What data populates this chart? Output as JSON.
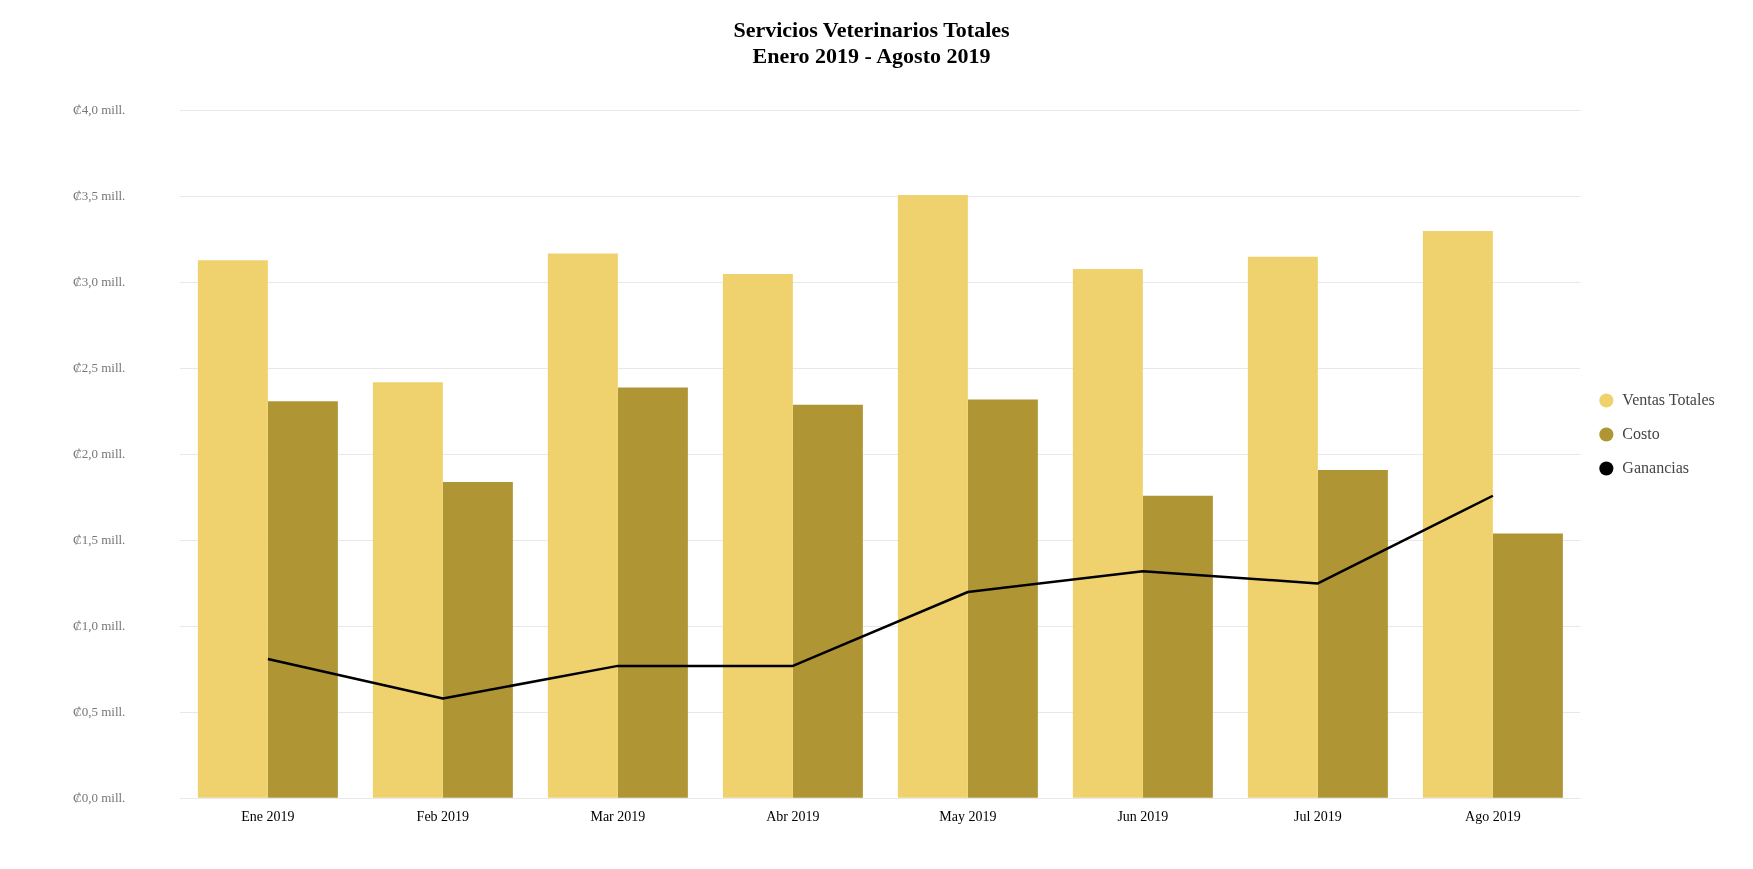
{
  "chart_data": {
    "type": "bar",
    "title": "Servicios Veterinarios Totales",
    "subtitle": "Enero 2019 - Agosto 2019",
    "categories": [
      "Ene 2019",
      "Feb 2019",
      "Mar 2019",
      "Abr 2019",
      "May 2019",
      "Jun 2019",
      "Jul 2019",
      "Ago 2019"
    ],
    "series": [
      {
        "name": "Ventas Totales",
        "color": "#efd26e",
        "values": [
          3.13,
          2.42,
          3.17,
          3.05,
          3.51,
          3.08,
          3.15,
          3.3
        ]
      },
      {
        "name": "Costo",
        "color": "#b09535",
        "values": [
          2.31,
          1.84,
          2.39,
          2.29,
          2.32,
          1.76,
          1.91,
          1.54
        ]
      },
      {
        "name": "Ganancias",
        "type": "line",
        "color": "#000000",
        "values": [
          0.81,
          0.58,
          0.77,
          0.77,
          1.2,
          1.32,
          1.25,
          1.76
        ]
      }
    ],
    "ylim": [
      0,
      4
    ],
    "yticks": [
      {
        "value": 0,
        "label": "₡0,0 mill."
      },
      {
        "value": 0.5,
        "label": "₡0,5 mill."
      },
      {
        "value": 1,
        "label": "₡1,0 mill."
      },
      {
        "value": 1.5,
        "label": "₡1,5 mill."
      },
      {
        "value": 2,
        "label": "₡2,0 mill."
      },
      {
        "value": 2.5,
        "label": "₡2,5 mill."
      },
      {
        "value": 3,
        "label": "₡3,0 mill."
      },
      {
        "value": 3.5,
        "label": "₡3,5 mill."
      },
      {
        "value": 4,
        "label": "₡4,0 mill."
      }
    ],
    "grid": "y",
    "legend": "right",
    "marker": "none",
    "line_style": "solid"
  }
}
